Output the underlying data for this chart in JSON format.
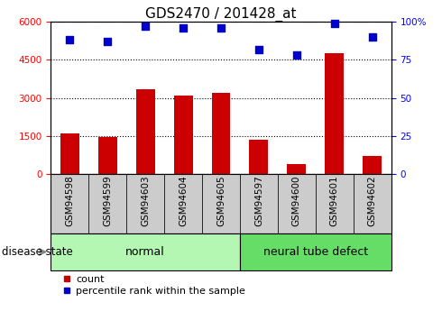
{
  "title": "GDS2470 / 201428_at",
  "samples": [
    "GSM94598",
    "GSM94599",
    "GSM94603",
    "GSM94604",
    "GSM94605",
    "GSM94597",
    "GSM94600",
    "GSM94601",
    "GSM94602"
  ],
  "counts": [
    1600,
    1450,
    3350,
    3100,
    3200,
    1350,
    400,
    4750,
    700
  ],
  "percentiles": [
    88,
    87,
    97,
    96,
    96,
    82,
    78,
    99,
    90
  ],
  "groups": [
    {
      "label": "normal",
      "start": 0,
      "end": 5,
      "color": "#b3f7b3"
    },
    {
      "label": "neural tube defect",
      "start": 5,
      "end": 9,
      "color": "#66dd66"
    }
  ],
  "bar_color": "#CC0000",
  "scatter_color": "#0000CC",
  "left_yticks": [
    0,
    1500,
    3000,
    4500,
    6000
  ],
  "right_yticks": [
    0,
    25,
    50,
    75,
    100
  ],
  "left_ylim": [
    0,
    6000
  ],
  "right_ylim": [
    0,
    100
  ],
  "disease_state_label": "disease state",
  "legend_count_label": "count",
  "legend_percentile_label": "percentile rank within the sample",
  "bar_width": 0.5,
  "grid_color": "#000000",
  "title_fontsize": 11,
  "tick_label_fontsize": 7.5,
  "group_label_fontsize": 9,
  "legend_fontsize": 8,
  "xtick_bg_color": "#cccccc",
  "spine_color": "#888888"
}
